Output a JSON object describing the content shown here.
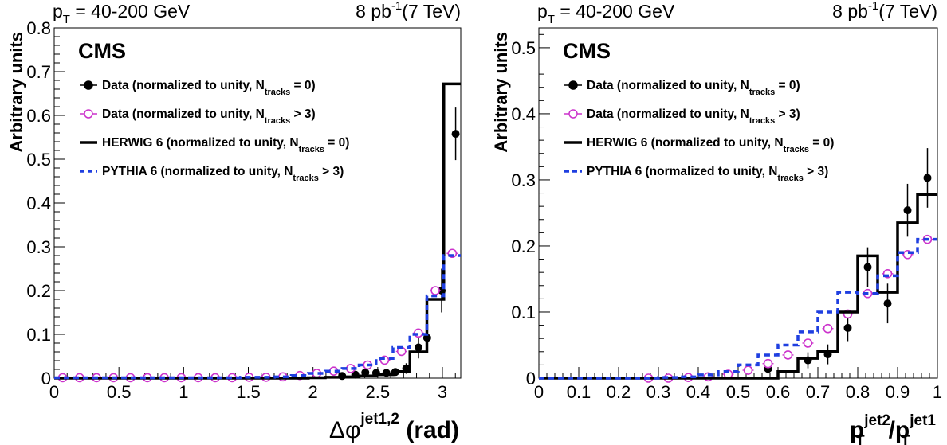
{
  "chart_data": [
    {
      "type": "step",
      "header_left": {
        "base": "p",
        "sub": "T",
        "rest": " = 40-200 GeV"
      },
      "header_right": {
        "pre": "8 pb",
        "sup": "-1",
        "post": "(7 TeV)"
      },
      "cms_label": "CMS",
      "ylabel": "Arbitrary units",
      "xlabel": {
        "base": "Δφ",
        "sup": "jet1,2",
        "post": " (rad)"
      },
      "xlim": [
        0,
        3.1416
      ],
      "ylim": [
        0,
        0.8
      ],
      "xticks": [
        0,
        0.5,
        1,
        1.5,
        2,
        2.5,
        3
      ],
      "xtick_labels": [
        "0",
        "0.5",
        "1",
        "1.5",
        "2",
        "2.5",
        "3"
      ],
      "yticks": [
        0,
        0.1,
        0.2,
        0.3,
        0.4,
        0.5,
        0.6,
        0.7,
        0.8
      ],
      "ytick_labels": [
        "0",
        "0.1",
        "0.2",
        "0.3",
        "0.4",
        "0.5",
        "0.6",
        "0.7",
        "0.8"
      ],
      "legend_position": "top-left",
      "legend": [
        {
          "style": "filled-marker",
          "text": "Data (normalized to unity, N",
          "sub": "tracks",
          "tail": " = 0)"
        },
        {
          "style": "open-marker",
          "text": "Data (normalized to unity, N",
          "sub": "tracks",
          "tail": " > 3)"
        },
        {
          "style": "solid-line",
          "text": "HERWIG 6 (normalized to unity, N",
          "sub": "tracks",
          "tail": " = 0)"
        },
        {
          "style": "dashed-line",
          "text": "PYTHIA 6 (normalized to unity, N",
          "sub": "tracks",
          "tail": " > 3)"
        }
      ],
      "colors": {
        "data_ntracks0": "#000000",
        "data_ntracks_gt3": "#cc33cc",
        "herwig": "#000000",
        "pythia": "#1f3fe0"
      },
      "bin_edges": [
        0,
        0.1309,
        0.2618,
        0.3927,
        0.5236,
        0.6545,
        0.7854,
        0.9163,
        1.0472,
        1.1781,
        1.309,
        1.4399,
        1.5708,
        1.7017,
        1.8326,
        1.9635,
        2.0944,
        2.2253,
        2.3562,
        2.4871,
        2.618,
        2.7489,
        2.8798,
        3.0107,
        3.1416
      ],
      "series": [
        {
          "name": "Data (normalized to unity, Ntracks = 0)",
          "style": "filled-marker",
          "x": [
            2.225,
            2.327,
            2.404,
            2.488,
            2.567,
            2.636,
            2.72,
            2.815,
            2.882,
            2.994,
            3.102
          ],
          "y": [
            0.005,
            0.008,
            0.013,
            0.012,
            0.012,
            0.014,
            0.022,
            0.07,
            0.092,
            0.2,
            0.558
          ],
          "err": [
            0.004,
            0.006,
            0.007,
            0.008,
            0.008,
            0.008,
            0.012,
            0.025,
            0.035,
            0.05,
            0.06
          ]
        },
        {
          "name": "Data (normalized to unity, Ntracks > 3)",
          "style": "open-marker",
          "x": [
            0.065,
            0.196,
            0.327,
            0.458,
            0.589,
            0.72,
            0.851,
            0.982,
            1.113,
            1.244,
            1.375,
            1.506,
            1.637,
            1.767,
            1.898,
            2.029,
            2.16,
            2.291,
            2.422,
            2.553,
            2.684,
            2.814,
            2.945,
            3.076
          ],
          "y": [
            0.001,
            0.001,
            0.001,
            0.001,
            0.001,
            0.001,
            0.001,
            0.001,
            0.001,
            0.001,
            0.001,
            0.002,
            0.002,
            0.003,
            0.006,
            0.011,
            0.016,
            0.022,
            0.03,
            0.041,
            0.061,
            0.103,
            0.2,
            0.285
          ]
        },
        {
          "name": "HERWIG 6 (normalized to unity, Ntracks = 0)",
          "style": "solid-line",
          "y": [
            0,
            0,
            0,
            0,
            0,
            0,
            0,
            0,
            0,
            0,
            0,
            0,
            0,
            0,
            0,
            0.001,
            0.002,
            0.003,
            0.005,
            0.008,
            0.015,
            0.06,
            0.18,
            0.672
          ]
        },
        {
          "name": "PYTHIA 6 (normalized to unity, Ntracks > 3)",
          "style": "dashed-line",
          "y": [
            0.001,
            0.001,
            0.001,
            0.001,
            0.001,
            0.001,
            0.001,
            0.001,
            0.001,
            0.001,
            0.001,
            0.002,
            0.002,
            0.003,
            0.006,
            0.011,
            0.016,
            0.022,
            0.03,
            0.045,
            0.07,
            0.1,
            0.188,
            0.28
          ]
        }
      ]
    },
    {
      "type": "step",
      "header_left": {
        "base": "p",
        "sub": "T",
        "rest": " = 40-200 GeV"
      },
      "header_right": {
        "pre": "8 pb",
        "sup": "-1",
        "post": "(7 TeV)"
      },
      "cms_label": "CMS",
      "ylabel": "Arbitrary units",
      "xlabel": {
        "p1": "p",
        "sup1": "jet2",
        "sub1": "T",
        "slash": "/",
        "p2": "p",
        "sup2": "jet1",
        "sub2": "T"
      },
      "xlim": [
        0,
        1
      ],
      "ylim": [
        0,
        0.53
      ],
      "xticks": [
        0,
        0.1,
        0.2,
        0.3,
        0.4,
        0.5,
        0.6,
        0.7,
        0.8,
        0.9,
        1
      ],
      "xtick_labels": [
        "0",
        "0.1",
        "0.2",
        "0.3",
        "0.4",
        "0.5",
        "0.6",
        "0.7",
        "0.8",
        "0.9",
        "1"
      ],
      "yticks": [
        0,
        0.1,
        0.2,
        0.3,
        0.4,
        0.5
      ],
      "ytick_labels": [
        "0",
        "0.1",
        "0.2",
        "0.3",
        "0.4",
        "0.5"
      ],
      "legend_position": "top-left",
      "legend": [
        {
          "style": "filled-marker",
          "text": "Data (normalized to unity, N",
          "sub": "tracks",
          "tail": " = 0)"
        },
        {
          "style": "open-marker",
          "text": "Data (normalized to unity, N",
          "sub": "tracks",
          "tail": " > 3)"
        },
        {
          "style": "solid-line",
          "text": "HERWIG 6 (normalized to unity, N",
          "sub": "tracks",
          "tail": " = 0)"
        },
        {
          "style": "dashed-line",
          "text": "PYTHIA 6 (normalized to unity, N",
          "sub": "tracks",
          "tail": " > 3)"
        }
      ],
      "colors": {
        "data_ntracks0": "#000000",
        "data_ntracks_gt3": "#cc33cc",
        "herwig": "#000000",
        "pythia": "#1f3fe0"
      },
      "bin_edges": [
        0,
        0.05,
        0.1,
        0.15,
        0.2,
        0.25,
        0.3,
        0.35,
        0.4,
        0.45,
        0.5,
        0.55,
        0.6,
        0.65,
        0.7,
        0.75,
        0.8,
        0.85,
        0.9,
        0.95,
        1.0
      ],
      "series": [
        {
          "name": "Data (normalized to unity, Ntracks = 0)",
          "style": "filled-marker",
          "x": [
            0.475,
            0.575,
            0.675,
            0.725,
            0.775,
            0.825,
            0.875,
            0.925,
            0.975
          ],
          "y": [
            0.006,
            0.014,
            0.027,
            0.036,
            0.076,
            0.168,
            0.113,
            0.254,
            0.303
          ],
          "err": [
            0.004,
            0.007,
            0.012,
            0.015,
            0.02,
            0.03,
            0.03,
            0.04,
            0.045
          ]
        },
        {
          "name": "Data (normalized to unity, Ntracks > 3)",
          "style": "open-marker",
          "x": [
            0.275,
            0.325,
            0.375,
            0.425,
            0.475,
            0.525,
            0.575,
            0.625,
            0.675,
            0.725,
            0.775,
            0.825,
            0.875,
            0.925,
            0.975
          ],
          "y": [
            0.0,
            0.0,
            0.001,
            0.002,
            0.006,
            0.012,
            0.022,
            0.035,
            0.053,
            0.075,
            0.097,
            0.128,
            0.158,
            0.187,
            0.21
          ]
        },
        {
          "name": "HERWIG 6 (normalized to unity, Ntracks = 0)",
          "style": "solid-line",
          "y": [
            0,
            0,
            0,
            0,
            0,
            0,
            0,
            0,
            0,
            0,
            0,
            0,
            0.01,
            0.03,
            0.04,
            0.1,
            0.185,
            0.13,
            0.235,
            0.278
          ]
        },
        {
          "name": "PYTHIA 6 (normalized to unity, Ntracks > 3)",
          "style": "dashed-line",
          "y": [
            0,
            0,
            0,
            0,
            0,
            0,
            0.001,
            0.002,
            0.005,
            0.01,
            0.02,
            0.035,
            0.05,
            0.07,
            0.1,
            0.13,
            0.128,
            0.155,
            0.19,
            0.21
          ]
        }
      ]
    }
  ]
}
